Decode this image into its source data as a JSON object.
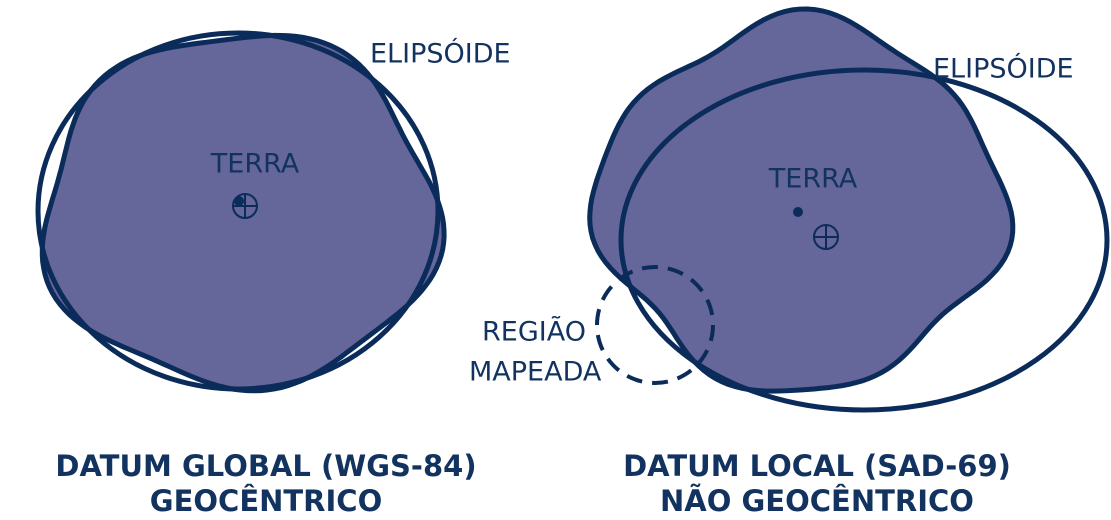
{
  "left": {
    "ellipsoid_label": "ELIPSÓIDE",
    "earth_label": "TERRA",
    "caption": [
      "DATUM GLOBAL (WGS-84)",
      "GEOCÊNTRICO"
    ]
  },
  "right": {
    "ellipsoid_label": "ELIPSÓIDE",
    "earth_label": "TERRA",
    "region_label": [
      "REGIÃO",
      "MAPEADA"
    ],
    "caption": [
      "DATUM LOCAL (SAD-69)",
      "NÃO GEOCÊNTRICO"
    ]
  }
}
